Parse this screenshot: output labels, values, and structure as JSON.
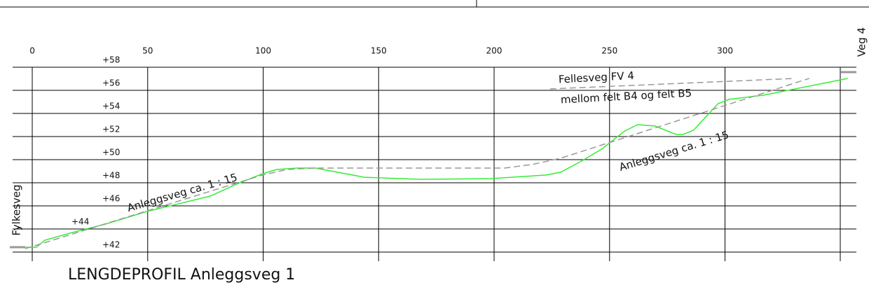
{
  "chart_data": {
    "type": "line",
    "title": "LENGDEPROFIL Anleggsveg 1",
    "xlim": [
      -8.5,
      357.5
    ],
    "xticks": [
      0,
      50,
      100,
      150,
      200,
      250,
      300
    ],
    "ylim": [
      42,
      58
    ],
    "yticks": [
      {
        "value": 42,
        "label": "+42"
      },
      {
        "value": 44,
        "label": "+44"
      },
      {
        "value": 46,
        "label": "+46"
      },
      {
        "value": 48,
        "label": "+48"
      },
      {
        "value": 50,
        "label": "+50"
      },
      {
        "value": 52,
        "label": "+52"
      },
      {
        "value": 54,
        "label": "+54"
      },
      {
        "value": 56,
        "label": "+56"
      },
      {
        "value": 58,
        "label": "+58"
      }
    ],
    "grid": true,
    "series": [
      {
        "color": "#33ee33",
        "dashed": false,
        "x": [
          -3.0,
          1.8,
          5.5,
          16.4,
          31.6,
          49.8,
          77.1,
          89.2,
          99.8,
          105.9,
          115.0,
          122.6,
          143.8,
          168.1,
          198.4,
          222.7,
          228.8,
          237.9,
          247.0,
          256.1,
          262.1,
          269.7,
          278.8,
          281.9,
          286.4,
          297.0,
          301.6,
          316.7,
          353.2
        ],
        "values": [
          42.42,
          42.42,
          43.03,
          43.64,
          44.42,
          45.52,
          46.85,
          47.94,
          48.79,
          49.15,
          49.27,
          49.27,
          48.48,
          48.3,
          48.36,
          48.67,
          48.91,
          49.88,
          50.97,
          52.42,
          53.03,
          52.91,
          52.18,
          52.18,
          52.55,
          54.85,
          55.21,
          55.58,
          57.03
        ]
      },
      {
        "color": "#999999",
        "dashed": true,
        "x": [
          -3.0,
          99.8,
          110.4,
          122.6,
          204.5,
          216.6,
          228.8,
          336.5
        ],
        "values": [
          42.3,
          48.67,
          49.15,
          49.27,
          49.27,
          49.58,
          50.12,
          57.03
        ]
      },
      {
        "color": "#999999",
        "dashed": true,
        "x": [
          224.2,
          330.4
        ],
        "values": [
          56.12,
          57.03
        ]
      }
    ],
    "annotations": [
      "Anleggsveg ca. 1 : 15",
      "Anleggsveg ca. 1 : 15",
      "Fellesveg FV 4",
      "mellom felt B4 og felt B5",
      "Fylkesveg",
      "Veg 4"
    ]
  }
}
